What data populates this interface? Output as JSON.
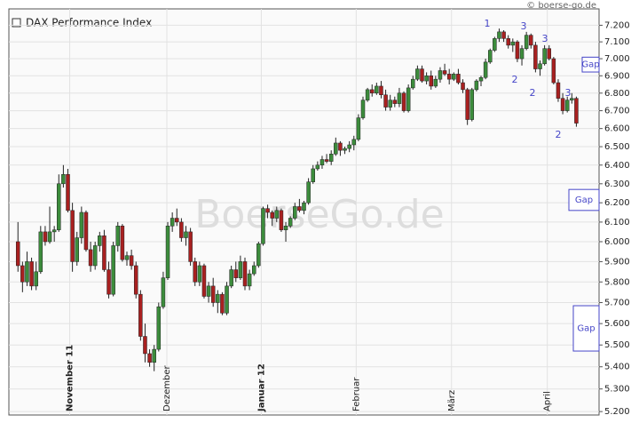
{
  "chart_data": {
    "type": "candlestick",
    "title": "DAX Performance Index",
    "source": "© boerse-go.de",
    "watermark": "BoerseGo.de",
    "log_scale": true,
    "grid": true,
    "up_color": "#3c8c3c",
    "down_color": "#a82020",
    "ylim": [
      5185,
      7300
    ],
    "yticks": [
      {
        "value": 5200,
        "label": "5.200"
      },
      {
        "value": 5300,
        "label": "5.300"
      },
      {
        "value": 5400,
        "label": "5.400"
      },
      {
        "value": 5500,
        "label": "5.500"
      },
      {
        "value": 5600,
        "label": "5.600"
      },
      {
        "value": 5700,
        "label": "5.700"
      },
      {
        "value": 5800,
        "label": "5.800"
      },
      {
        "value": 5900,
        "label": "5.900"
      },
      {
        "value": 6000,
        "label": "6.000"
      },
      {
        "value": 6100,
        "label": "6.100"
      },
      {
        "value": 6200,
        "label": "6.200"
      },
      {
        "value": 6300,
        "label": "6.300"
      },
      {
        "value": 6400,
        "label": "6.400"
      },
      {
        "value": 6500,
        "label": "6.500"
      },
      {
        "value": 6600,
        "label": "6.600"
      },
      {
        "value": 6700,
        "label": "6.700"
      },
      {
        "value": 6800,
        "label": "6.800"
      },
      {
        "value": 6900,
        "label": "6.900"
      },
      {
        "value": 7000,
        "label": "7.000"
      },
      {
        "value": 7100,
        "label": "7.100"
      },
      {
        "value": 7200,
        "label": "7.200"
      }
    ],
    "xlim": [
      -2,
      128
    ],
    "xticks": [
      {
        "value": 11.4,
        "label": "November 11"
      },
      {
        "value": 32.8,
        "label": "Dezember"
      },
      {
        "value": 53.6,
        "label": "Januar 12"
      },
      {
        "value": 74.5,
        "label": "Februar"
      },
      {
        "value": 95.5,
        "label": "März"
      },
      {
        "value": 116.6,
        "label": "April"
      }
    ],
    "ohlc": [
      [
        6000,
        6100,
        5850,
        5880
      ],
      [
        5880,
        5900,
        5750,
        5800
      ],
      [
        5800,
        5950,
        5780,
        5900
      ],
      [
        5900,
        5920,
        5760,
        5780
      ],
      [
        5780,
        5900,
        5760,
        5850
      ],
      [
        5850,
        6080,
        5840,
        6050
      ],
      [
        6050,
        6080,
        5980,
        6000
      ],
      [
        6000,
        6180,
        5990,
        6050
      ],
      [
        6050,
        6080,
        6000,
        6060
      ],
      [
        6060,
        6350,
        6050,
        6300
      ],
      [
        6300,
        6400,
        6280,
        6350
      ],
      [
        6350,
        6380,
        6150,
        6160
      ],
      [
        6160,
        6200,
        5850,
        5900
      ],
      [
        5900,
        6050,
        5880,
        6020
      ],
      [
        6020,
        6180,
        5990,
        6150
      ],
      [
        6150,
        6160,
        5950,
        5960
      ],
      [
        5960,
        6000,
        5850,
        5880
      ],
      [
        5880,
        6000,
        5860,
        5980
      ],
      [
        5980,
        6050,
        5950,
        6030
      ],
      [
        6030,
        6060,
        5850,
        5860
      ],
      [
        5860,
        5900,
        5720,
        5740
      ],
      [
        5740,
        6000,
        5730,
        5980
      ],
      [
        5980,
        6100,
        5950,
        6080
      ],
      [
        6080,
        6090,
        5900,
        5910
      ],
      [
        5910,
        5950,
        5880,
        5930
      ],
      [
        5930,
        5960,
        5860,
        5880
      ],
      [
        5880,
        5900,
        5720,
        5740
      ],
      [
        5740,
        5760,
        5520,
        5540
      ],
      [
        5540,
        5600,
        5420,
        5460
      ],
      [
        5460,
        5480,
        5400,
        5420
      ],
      [
        5420,
        5500,
        5380,
        5480
      ],
      [
        5480,
        5700,
        5470,
        5680
      ],
      [
        5680,
        5850,
        5670,
        5820
      ],
      [
        5820,
        6100,
        5810,
        6080
      ],
      [
        6080,
        6150,
        6050,
        6120
      ],
      [
        6120,
        6170,
        6080,
        6100
      ],
      [
        6100,
        6120,
        6000,
        6020
      ],
      [
        6020,
        6080,
        5980,
        6050
      ],
      [
        6050,
        6070,
        5880,
        5900
      ],
      [
        5900,
        5920,
        5780,
        5800
      ],
      [
        5800,
        5900,
        5780,
        5880
      ],
      [
        5880,
        5890,
        5720,
        5730
      ],
      [
        5730,
        5800,
        5700,
        5780
      ],
      [
        5780,
        5820,
        5680,
        5700
      ],
      [
        5700,
        5760,
        5650,
        5740
      ],
      [
        5740,
        5750,
        5640,
        5650
      ],
      [
        5650,
        5800,
        5640,
        5780
      ],
      [
        5780,
        5880,
        5770,
        5860
      ],
      [
        5860,
        5900,
        5800,
        5820
      ],
      [
        5820,
        5930,
        5810,
        5900
      ],
      [
        5900,
        5920,
        5760,
        5780
      ],
      [
        5780,
        5860,
        5760,
        5840
      ],
      [
        5840,
        5900,
        5830,
        5880
      ],
      [
        5880,
        6000,
        5870,
        5990
      ],
      [
        5990,
        6180,
        5980,
        6170
      ],
      [
        6170,
        6190,
        6120,
        6150
      ],
      [
        6150,
        6160,
        6080,
        6120
      ],
      [
        6120,
        6180,
        6100,
        6160
      ],
      [
        6160,
        6170,
        6050,
        6060
      ],
      [
        6060,
        6100,
        6000,
        6080
      ],
      [
        6080,
        6130,
        6070,
        6120
      ],
      [
        6120,
        6200,
        6110,
        6180
      ],
      [
        6180,
        6220,
        6150,
        6160
      ],
      [
        6160,
        6210,
        6140,
        6200
      ],
      [
        6200,
        6330,
        6190,
        6310
      ],
      [
        6310,
        6400,
        6300,
        6380
      ],
      [
        6380,
        6420,
        6370,
        6400
      ],
      [
        6400,
        6450,
        6380,
        6430
      ],
      [
        6430,
        6460,
        6410,
        6420
      ],
      [
        6420,
        6480,
        6400,
        6460
      ],
      [
        6460,
        6550,
        6450,
        6520
      ],
      [
        6520,
        6530,
        6450,
        6480
      ],
      [
        6480,
        6500,
        6460,
        6490
      ],
      [
        6490,
        6530,
        6470,
        6510
      ],
      [
        6510,
        6560,
        6480,
        6540
      ],
      [
        6540,
        6680,
        6530,
        6660
      ],
      [
        6660,
        6780,
        6650,
        6760
      ],
      [
        6760,
        6830,
        6750,
        6820
      ],
      [
        6820,
        6850,
        6780,
        6800
      ],
      [
        6800,
        6860,
        6790,
        6840
      ],
      [
        6840,
        6870,
        6770,
        6790
      ],
      [
        6790,
        6820,
        6700,
        6720
      ],
      [
        6720,
        6790,
        6700,
        6760
      ],
      [
        6760,
        6780,
        6720,
        6740
      ],
      [
        6740,
        6830,
        6720,
        6800
      ],
      [
        6800,
        6810,
        6690,
        6700
      ],
      [
        6700,
        6850,
        6690,
        6830
      ],
      [
        6830,
        6900,
        6820,
        6880
      ],
      [
        6880,
        6960,
        6870,
        6940
      ],
      [
        6940,
        6960,
        6860,
        6870
      ],
      [
        6870,
        6920,
        6850,
        6900
      ],
      [
        6900,
        6930,
        6820,
        6840
      ],
      [
        6840,
        6900,
        6830,
        6880
      ],
      [
        6880,
        6950,
        6860,
        6930
      ],
      [
        6930,
        6970,
        6900,
        6910
      ],
      [
        6910,
        6940,
        6850,
        6880
      ],
      [
        6880,
        6920,
        6870,
        6910
      ],
      [
        6910,
        6940,
        6850,
        6860
      ],
      [
        6860,
        6880,
        6800,
        6820
      ],
      [
        6820,
        6830,
        6620,
        6650
      ],
      [
        6650,
        6830,
        6640,
        6820
      ],
      [
        6820,
        6880,
        6810,
        6870
      ],
      [
        6870,
        6900,
        6840,
        6890
      ],
      [
        6890,
        7000,
        6880,
        6980
      ],
      [
        6980,
        7060,
        6970,
        7050
      ],
      [
        7050,
        7130,
        7040,
        7120
      ],
      [
        7120,
        7180,
        7100,
        7160
      ],
      [
        7160,
        7170,
        7100,
        7120
      ],
      [
        7120,
        7140,
        7060,
        7080
      ],
      [
        7080,
        7120,
        7040,
        7100
      ],
      [
        7100,
        7110,
        6980,
        7000
      ],
      [
        7000,
        7080,
        6960,
        7060
      ],
      [
        7060,
        7160,
        7050,
        7140
      ],
      [
        7140,
        7150,
        7060,
        7080
      ],
      [
        7080,
        7100,
        6920,
        6940
      ],
      [
        6940,
        6990,
        6900,
        6970
      ],
      [
        6970,
        7080,
        6960,
        7060
      ],
      [
        7060,
        7080,
        6990,
        7000
      ],
      [
        7000,
        7010,
        6850,
        6860
      ],
      [
        6860,
        6880,
        6750,
        6770
      ],
      [
        6770,
        6800,
        6680,
        6700
      ],
      [
        6700,
        6780,
        6690,
        6760
      ],
      [
        6760,
        6800,
        6740,
        6770
      ],
      [
        6770,
        6780,
        6610,
        6630
      ]
    ],
    "wave_labels": [
      "1",
      "2",
      "3",
      "2",
      "3",
      "3",
      "2"
    ],
    "gaps": [
      {
        "label": "Gap",
        "from": 6922,
        "to": 7009
      },
      {
        "label": "Gap",
        "from": 6160,
        "to": 6270
      },
      {
        "label": "Gap",
        "from": 5472,
        "to": 5685
      }
    ]
  }
}
